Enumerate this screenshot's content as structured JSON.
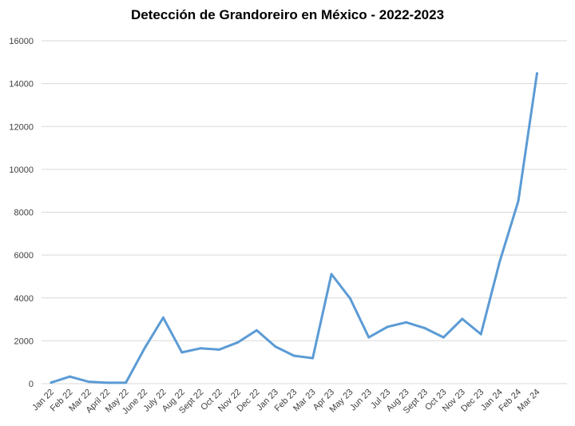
{
  "chart_data": {
    "type": "line",
    "title": "Detección de Grandoreiro en México - 2022-2023",
    "xlabel": "",
    "ylabel": "",
    "categories": [
      "Jan 22",
      "Feb 22",
      "Mar 22",
      "April 22",
      "May 22",
      "June 22",
      "July 22",
      "Aug 22",
      "Sept 22",
      "Oct 22",
      "Nov 22",
      "Dec 22",
      "Jan 23",
      "Feb 23",
      "Mar 23",
      "Apr 23",
      "May 23",
      "Jun 23",
      "Jul 23",
      "Aug 23",
      "Sept 23",
      "Oct 23",
      "Nov 23",
      "Dec 23",
      "Jan 24",
      "Feb 24",
      "Mar 24"
    ],
    "series": [
      {
        "values": [
          50,
          330,
          90,
          40,
          40,
          1650,
          3080,
          1460,
          1650,
          1590,
          1930,
          2490,
          1730,
          1300,
          1190,
          5110,
          3980,
          2160,
          2650,
          2860,
          2590,
          2160,
          3020,
          2310,
          5680,
          8520,
          14480
        ]
      }
    ],
    "yticks": [
      "0",
      "2000",
      "4000",
      "6000",
      "8000",
      "10000",
      "12000",
      "14000",
      "16000"
    ],
    "ylim": [
      0,
      16000
    ],
    "grid": true,
    "legend": "none",
    "colors": {
      "line": "#5b9bd5",
      "grid": "#d9d9d9",
      "text": "#404040"
    }
  }
}
